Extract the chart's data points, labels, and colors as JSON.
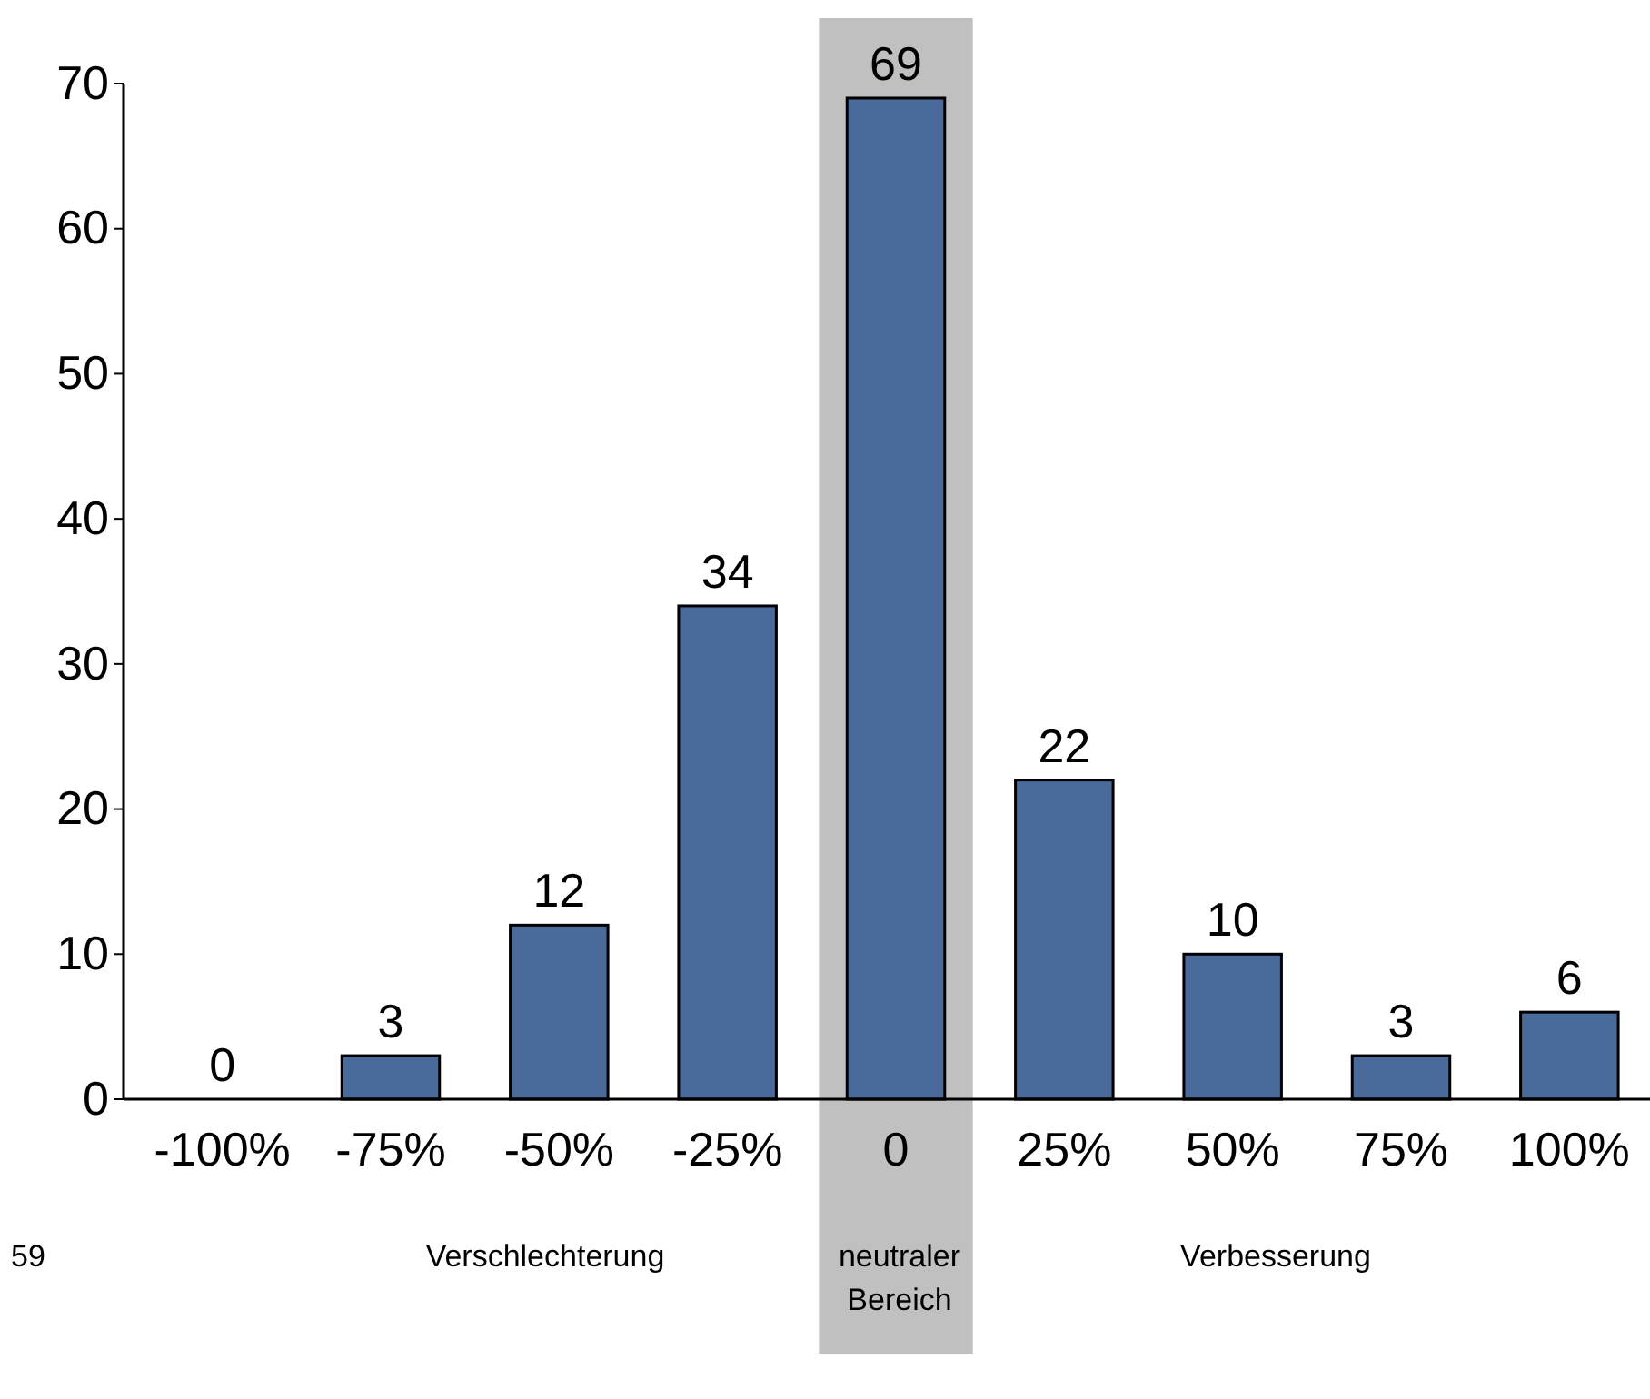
{
  "chart_data": {
    "type": "bar",
    "categories": [
      "-100%",
      "-75%",
      "-50%",
      "-25%",
      "0",
      "25%",
      "50%",
      "75%",
      "100%"
    ],
    "values": [
      0,
      3,
      12,
      34,
      69,
      22,
      10,
      3,
      6
    ],
    "color": "#4a6a9b",
    "ylim": [
      0,
      70
    ],
    "yticks": [
      0,
      10,
      20,
      30,
      40,
      50,
      60,
      70
    ],
    "grid": false,
    "data_labels": true,
    "bands": [
      {
        "axis": "x",
        "from": "0",
        "to": "0",
        "color": "#c0c0c0"
      }
    ],
    "annotations": [
      "59",
      "Verschlechterung",
      "neutraler Bereich",
      "Verbesserung"
    ]
  }
}
